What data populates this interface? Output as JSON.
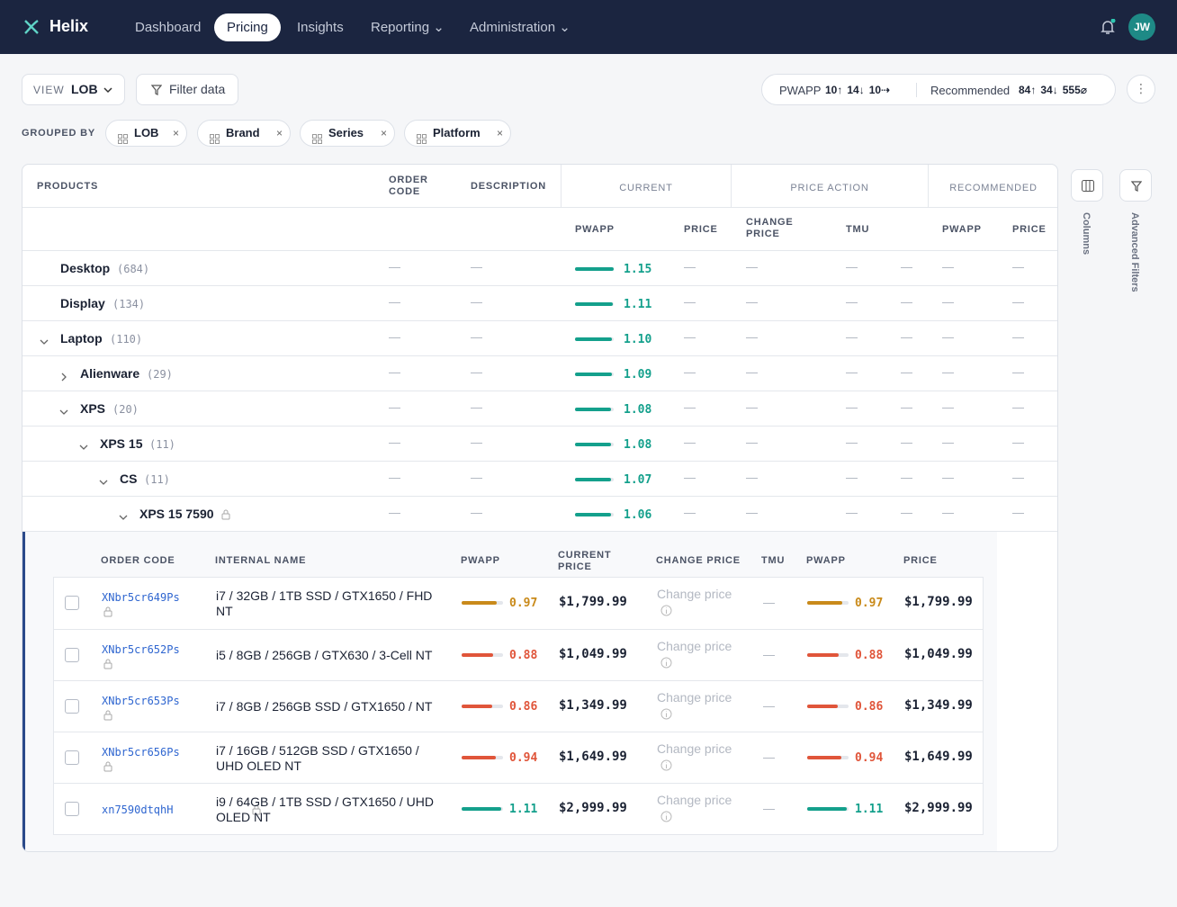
{
  "nav": {
    "brand": "Helix",
    "items": [
      "Dashboard",
      "Pricing",
      "Insights",
      "Reporting",
      "Administration"
    ],
    "active": 1,
    "avatar": "JW"
  },
  "toolbar": {
    "view_label": "VIEW",
    "view_value": "LOB",
    "filter": "Filter data",
    "pwapp_label": "PWAPP",
    "pwapp_counts": [
      "10↑",
      "14↓",
      "10⇢"
    ],
    "recommended_label": "Recommended",
    "recommended_counts": [
      "84↑",
      "34↓",
      "555⌀"
    ]
  },
  "grouped_by": {
    "label": "GROUPED BY",
    "chips": [
      "LOB",
      "Brand",
      "Series",
      "Platform"
    ]
  },
  "empty": "—",
  "table": {
    "headers": {
      "products": "PRODUCTS",
      "order_code": "ORDER CODE",
      "description": "DESCRIPTION",
      "current": "CURRENT",
      "price_action": "PRICE ACTION",
      "recommended": "RECOMMENDED",
      "sub": [
        "PWAPP",
        "PRICE",
        "CHANGE PRICE",
        "TMU",
        "PWAPP",
        "PRICE"
      ]
    },
    "bar_color": "#14a08c",
    "rows": [
      {
        "name": "Desktop",
        "count": "(684)",
        "pwapp": {
          "value": 1.15,
          "label": "1.15"
        }
      },
      {
        "name": "Display",
        "count": "(134)",
        "pwapp": {
          "value": 1.11,
          "label": "1.11"
        }
      },
      {
        "name": "Laptop",
        "count": "(110)",
        "pwapp": {
          "value": 1.1,
          "label": "1.10"
        }
      },
      {
        "name": "Alienware",
        "count": "(29)",
        "pwapp": {
          "value": 1.09,
          "label": "1.09"
        }
      },
      {
        "name": "XPS",
        "count": "(20)",
        "pwapp": {
          "value": 1.08,
          "label": "1.08"
        }
      },
      {
        "name": "XPS 15",
        "count": "(11)",
        "pwapp": {
          "value": 1.08,
          "label": "1.08"
        }
      },
      {
        "name": "CS",
        "count": "(11)",
        "pwapp": {
          "value": 1.07,
          "label": "1.07"
        }
      },
      {
        "name": "XPS 15 7590",
        "pwapp": {
          "value": 1.06,
          "label": "1.06"
        }
      }
    ]
  },
  "detail": {
    "headers": [
      "ORDER CODE",
      "INTERNAL NAME",
      "PWAPP",
      "CURRENT PRICE",
      "CHANGE PRICE",
      "TMU",
      "PWAPP",
      "PRICE"
    ],
    "change_placeholder": "Change price",
    "rows": [
      {
        "code": "XNbr5cr649Ps",
        "name": "i7 / 32GB / 1TB SSD / GTX1650 / FHD NT",
        "pwapp": 0.97,
        "color": "#c98a1a",
        "current_price": "$1,799.99",
        "rec_pwapp": 0.97,
        "rec_price": "$1,799.99"
      },
      {
        "code": "XNbr5cr652Ps",
        "name": "i5 / 8GB / 256GB / GTX630 / 3-Cell NT",
        "pwapp": 0.88,
        "color": "#e0553a",
        "current_price": "$1,049.99",
        "rec_pwapp": 0.88,
        "rec_price": "$1,049.99"
      },
      {
        "code": "XNbr5cr653Ps",
        "name": "i7 / 8GB / 256GB SSD / GTX1650 / NT",
        "pwapp": 0.86,
        "color": "#e0553a",
        "current_price": "$1,349.99",
        "rec_pwapp": 0.86,
        "rec_price": "$1,349.99"
      },
      {
        "code": "XNbr5cr656Ps",
        "name": "i7 / 16GB / 512GB SSD / GTX1650 / UHD OLED NT",
        "pwapp": 0.94,
        "color": "#e0553a",
        "current_price": "$1,649.99",
        "rec_pwapp": 0.94,
        "rec_price": "$1,649.99"
      },
      {
        "code": "xn7590dtqhH",
        "name": "i9 / 64GB / 1TB SSD / GTX1650 / UHD OLED NT",
        "pwapp": 1.11,
        "color": "#14a08c",
        "current_price": "$2,999.99",
        "rec_pwapp": 1.11,
        "rec_price": "$2,999.99"
      }
    ]
  },
  "side": {
    "columns": "Columns",
    "advanced_filters": "Advanced Filters"
  }
}
